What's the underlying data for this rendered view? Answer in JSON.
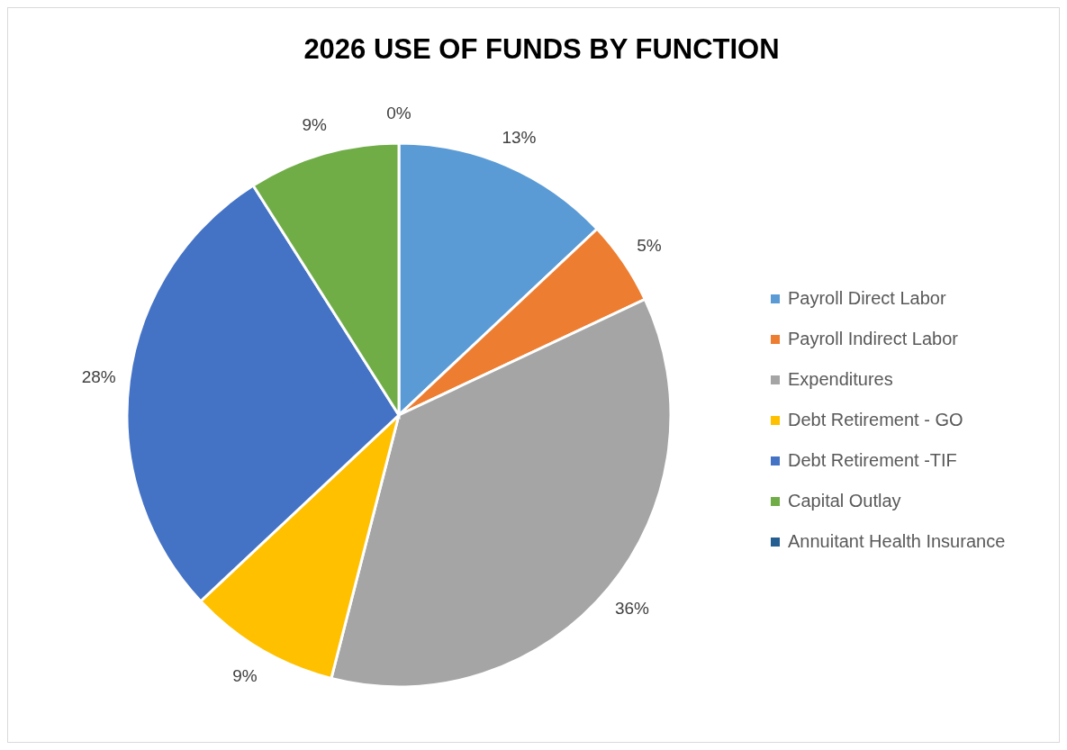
{
  "chart_data": {
    "type": "pie",
    "title": "2026 USE OF FUNDS BY FUNCTION",
    "categories": [
      "Payroll Direct Labor",
      "Payroll Indirect Labor",
      "Expenditures",
      "Debt Retirement - GO",
      "Debt Retirement -TIF",
      "Capital Outlay",
      "Annuitant Health Insurance"
    ],
    "values": [
      13,
      5,
      36,
      9,
      28,
      9,
      0
    ],
    "colors": [
      "#5b9bd5",
      "#ed7d31",
      "#a5a5a5",
      "#ffc000",
      "#4472c4",
      "#70ad47",
      "#255e91"
    ],
    "value_labels": [
      "13%",
      "5%",
      "36%",
      "9%",
      "28%",
      "9%",
      "0%"
    ],
    "legend": "right"
  }
}
